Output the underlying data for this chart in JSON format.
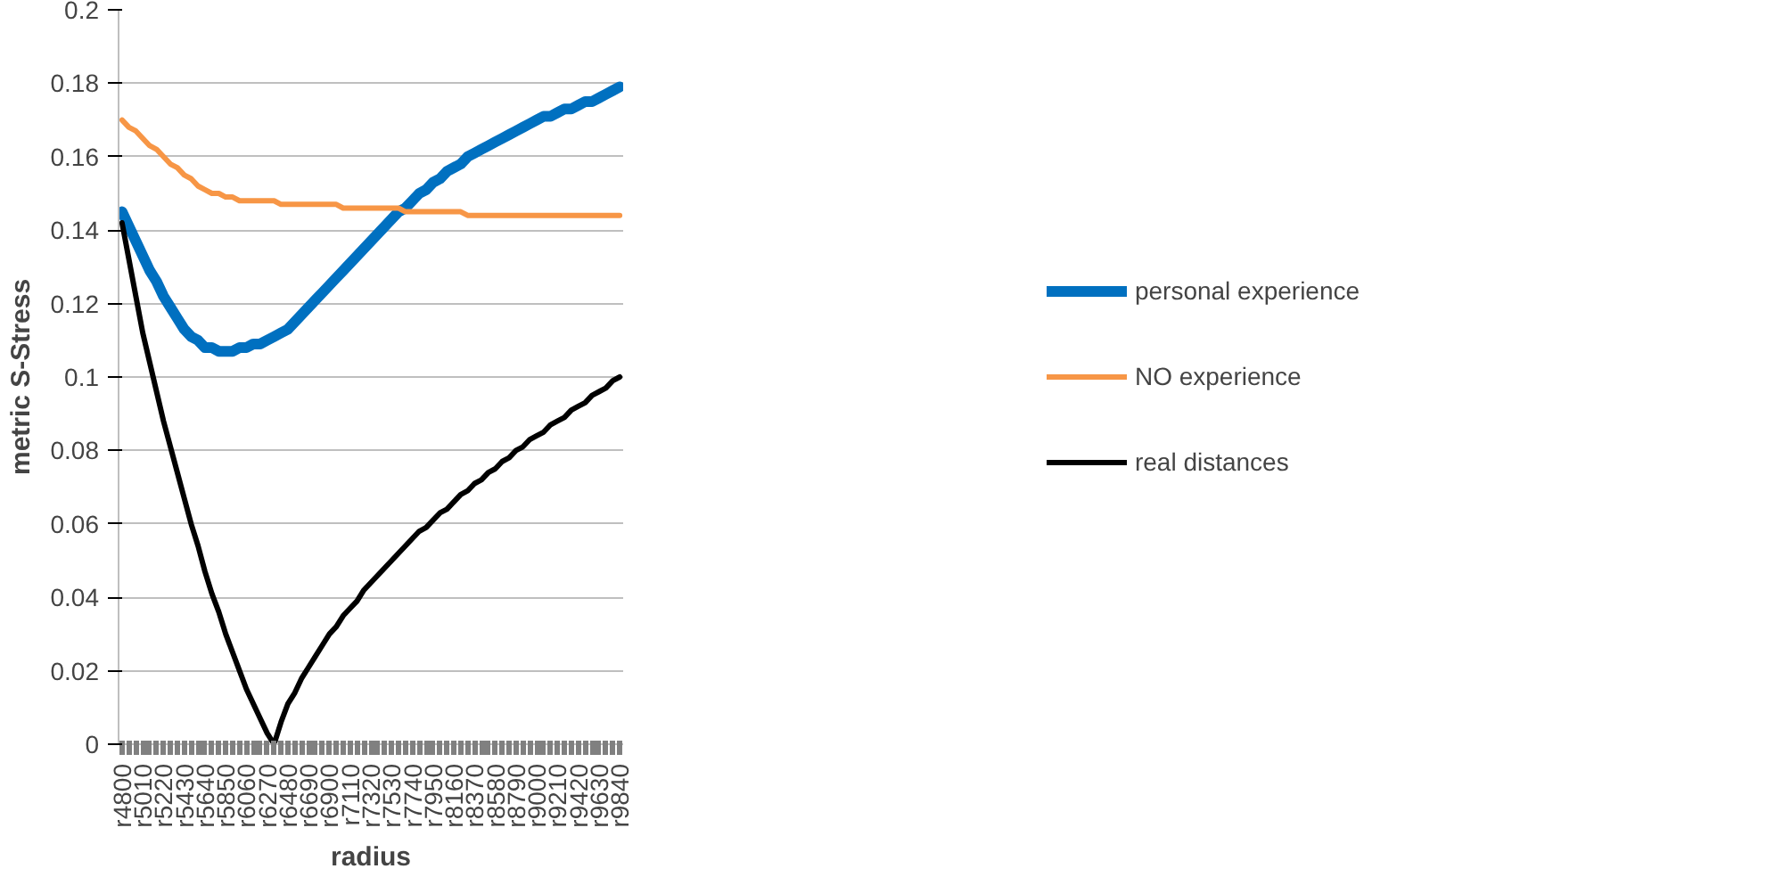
{
  "chart_data": {
    "type": "line",
    "xlabel": "radius",
    "ylabel": "metric S-Stress",
    "categories": [
      "r4800",
      null,
      null,
      "r5010",
      null,
      null,
      "r5220",
      null,
      null,
      "r5430",
      null,
      null,
      "r5640",
      null,
      null,
      "r5850",
      null,
      null,
      "r6060",
      null,
      null,
      "r6270",
      null,
      null,
      "r6480",
      null,
      null,
      "r6690",
      null,
      null,
      "r6900",
      null,
      null,
      "r7110",
      null,
      null,
      "r7320",
      null,
      null,
      "r7530",
      null,
      null,
      "r7740",
      null,
      null,
      "r7950",
      null,
      null,
      "r8160",
      null,
      null,
      "r8370",
      null,
      null,
      "r8580",
      null,
      null,
      "r8790",
      null,
      null,
      "r9000",
      null,
      null,
      "r9210",
      null,
      null,
      "r9420",
      null,
      null,
      "r9630",
      null,
      null,
      "r9840"
    ],
    "series": [
      {
        "name": "personal experience",
        "color": "#0070c0",
        "values": [
          0.145,
          0.141,
          0.137,
          0.133,
          0.129,
          0.126,
          0.122,
          0.119,
          0.116,
          0.113,
          0.111,
          0.11,
          0.108,
          0.108,
          0.107,
          0.107,
          0.107,
          0.108,
          0.108,
          0.109,
          0.109,
          0.11,
          0.111,
          0.112,
          0.113,
          0.115,
          0.117,
          0.119,
          0.121,
          0.123,
          0.125,
          0.127,
          0.129,
          0.131,
          0.133,
          0.135,
          0.137,
          0.139,
          0.141,
          0.143,
          0.145,
          0.146,
          0.148,
          0.15,
          0.151,
          0.153,
          0.154,
          0.156,
          0.157,
          0.158,
          0.16,
          0.161,
          0.162,
          0.163,
          0.164,
          0.165,
          0.166,
          0.167,
          0.168,
          0.169,
          0.17,
          0.171,
          0.171,
          0.172,
          0.173,
          0.173,
          0.174,
          0.175,
          0.175,
          0.176,
          0.177,
          0.178,
          0.179
        ]
      },
      {
        "name": "NO experience",
        "color": "#f79646",
        "values": [
          0.17,
          0.168,
          0.167,
          0.165,
          0.163,
          0.162,
          0.16,
          0.158,
          0.157,
          0.155,
          0.154,
          0.152,
          0.151,
          0.15,
          0.15,
          0.149,
          0.149,
          0.148,
          0.148,
          0.148,
          0.148,
          0.148,
          0.148,
          0.147,
          0.147,
          0.147,
          0.147,
          0.147,
          0.147,
          0.147,
          0.147,
          0.147,
          0.146,
          0.146,
          0.146,
          0.146,
          0.146,
          0.146,
          0.146,
          0.146,
          0.146,
          0.145,
          0.145,
          0.145,
          0.145,
          0.145,
          0.145,
          0.145,
          0.145,
          0.145,
          0.144,
          0.144,
          0.144,
          0.144,
          0.144,
          0.144,
          0.144,
          0.144,
          0.144,
          0.144,
          0.144,
          0.144,
          0.144,
          0.144,
          0.144,
          0.144,
          0.144,
          0.144,
          0.144,
          0.144,
          0.144,
          0.144,
          0.144
        ]
      },
      {
        "name": "real distances",
        "color": "#000000",
        "values": [
          0.142,
          0.132,
          0.122,
          0.112,
          0.104,
          0.096,
          0.088,
          0.081,
          0.074,
          0.067,
          0.06,
          0.054,
          0.047,
          0.041,
          0.036,
          0.03,
          0.025,
          0.02,
          0.015,
          0.011,
          0.007,
          0.003,
          0.0,
          0.006,
          0.011,
          0.014,
          0.018,
          0.021,
          0.024,
          0.027,
          0.03,
          0.032,
          0.035,
          0.037,
          0.039,
          0.042,
          0.044,
          0.046,
          0.048,
          0.05,
          0.052,
          0.054,
          0.056,
          0.058,
          0.059,
          0.061,
          0.063,
          0.064,
          0.066,
          0.068,
          0.069,
          0.071,
          0.072,
          0.074,
          0.075,
          0.077,
          0.078,
          0.08,
          0.081,
          0.083,
          0.084,
          0.085,
          0.087,
          0.088,
          0.089,
          0.091,
          0.092,
          0.093,
          0.095,
          0.096,
          0.097,
          0.099,
          0.1
        ]
      }
    ],
    "ylim": [
      0,
      0.2
    ],
    "yticks": [
      0,
      0.02,
      0.04,
      0.06,
      0.08,
      0.1,
      0.12,
      0.14,
      0.16,
      0.18,
      0.2
    ],
    "grid": "y",
    "legend": "right",
    "marker": "none",
    "line_style": "solid"
  }
}
